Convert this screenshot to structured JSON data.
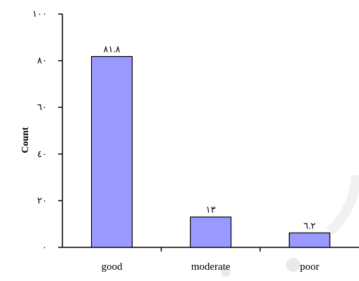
{
  "chart_data": {
    "type": "bar",
    "categories": [
      "good",
      "moderate",
      "poor"
    ],
    "values": [
      81.8,
      13,
      6.2
    ],
    "data_labels": [
      "٨١.٨",
      "١٣",
      "٦.٢"
    ],
    "ylim": [
      0,
      100
    ],
    "yticks": [
      0,
      20,
      40,
      60,
      80,
      100
    ],
    "ytick_labels": [
      "٠",
      "٢٠",
      "٤٠",
      "٦٠",
      "٨٠",
      "١٠٠"
    ],
    "ylabel": "Count",
    "xlabel": "",
    "title": "",
    "grid": false,
    "colors": {
      "bar_fill": "#9999ff",
      "bar_stroke": "#000000",
      "axis": "#000000",
      "watermark": "#e6e6e6"
    }
  }
}
